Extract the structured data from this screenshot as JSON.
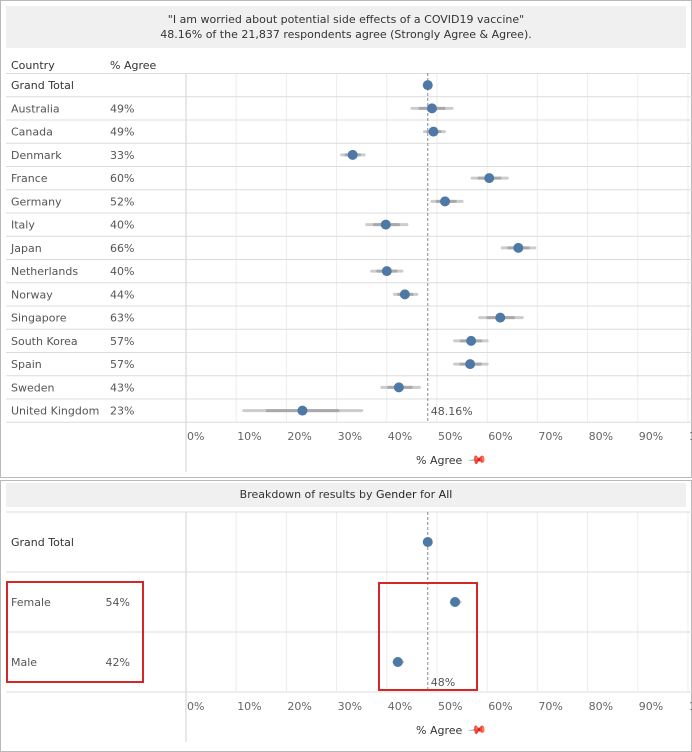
{
  "chart_data": [
    {
      "type": "dot-with-interval",
      "title": "\"I am worried about potential side effects of a COVID19 vaccine\"",
      "subtitle_parts": [
        "48.16%",
        " of the ",
        "21,837",
        " respondents agree (Strongly Agree & Agree)."
      ],
      "column_headers": {
        "dimension": "Country",
        "measure": "% Agree"
      },
      "xlabel": "% Agree",
      "xlim": [
        0,
        100
      ],
      "x_ticks": [
        "0%",
        "10%",
        "20%",
        "30%",
        "40%",
        "50%",
        "60%",
        "70%",
        "80%",
        "90%",
        "100%"
      ],
      "reference_line": {
        "value": 48.16,
        "label": "48.16%"
      },
      "rows": [
        {
          "label": "Grand Total",
          "pct_label": "",
          "value": 48.16,
          "lo": 48.16,
          "hi": 48.16
        },
        {
          "label": "Australia",
          "pct_label": "49%",
          "value": 49,
          "lo": 45,
          "hi": 53
        },
        {
          "label": "Canada",
          "pct_label": "49%",
          "value": 49.3,
          "lo": 47.5,
          "hi": 51.5
        },
        {
          "label": "Denmark",
          "pct_label": "33%",
          "value": 33.2,
          "lo": 31,
          "hi": 35.5
        },
        {
          "label": "France",
          "pct_label": "60%",
          "value": 60.4,
          "lo": 57,
          "hi": 64
        },
        {
          "label": "Germany",
          "pct_label": "52%",
          "value": 51.6,
          "lo": 49,
          "hi": 55
        },
        {
          "label": "Italy",
          "pct_label": "40%",
          "value": 39.8,
          "lo": 36,
          "hi": 44
        },
        {
          "label": "Japan",
          "pct_label": "66%",
          "value": 66.2,
          "lo": 63,
          "hi": 69.5
        },
        {
          "label": "Netherlands",
          "pct_label": "40%",
          "value": 40,
          "lo": 37,
          "hi": 43
        },
        {
          "label": "Norway",
          "pct_label": "44%",
          "value": 43.6,
          "lo": 41.5,
          "hi": 46
        },
        {
          "label": "Singapore",
          "pct_label": "63%",
          "value": 62.6,
          "lo": 58.5,
          "hi": 67
        },
        {
          "label": "South Korea",
          "pct_label": "57%",
          "value": 56.8,
          "lo": 53.5,
          "hi": 60
        },
        {
          "label": "Spain",
          "pct_label": "57%",
          "value": 56.6,
          "lo": 53.5,
          "hi": 60
        },
        {
          "label": "Sweden",
          "pct_label": "43%",
          "value": 42.4,
          "lo": 39,
          "hi": 46.5
        },
        {
          "label": "United Kingdom",
          "pct_label": "23%",
          "value": 23.2,
          "lo": 11.5,
          "hi": 35
        }
      ]
    },
    {
      "type": "dot-with-interval",
      "title_parts": [
        "Breakdown of results by ",
        "Gender",
        " for ",
        "All"
      ],
      "xlabel": "% Agree",
      "xlim": [
        0,
        100
      ],
      "x_ticks": [
        "0%",
        "10%",
        "20%",
        "30%",
        "40%",
        "50%",
        "60%",
        "70%",
        "80%",
        "90%",
        "100%"
      ],
      "reference_line": {
        "value": 48.16,
        "label": "48%"
      },
      "rows": [
        {
          "label": "Grand Total",
          "pct_label": "",
          "value": 48.16,
          "lo": 48.16,
          "hi": 48.16
        },
        {
          "label": "Female",
          "pct_label": "54%",
          "value": 53.6,
          "lo": 52.8,
          "hi": 54.6
        },
        {
          "label": "Male",
          "pct_label": "42%",
          "value": 42.2,
          "lo": 41.4,
          "hi": 43.2
        }
      ]
    }
  ],
  "colors": {
    "dot": "#4e79a7",
    "interval": "#c4c4c4",
    "highlight": "#d62728"
  },
  "icons": {
    "axis_pin": "pin-icon"
  }
}
